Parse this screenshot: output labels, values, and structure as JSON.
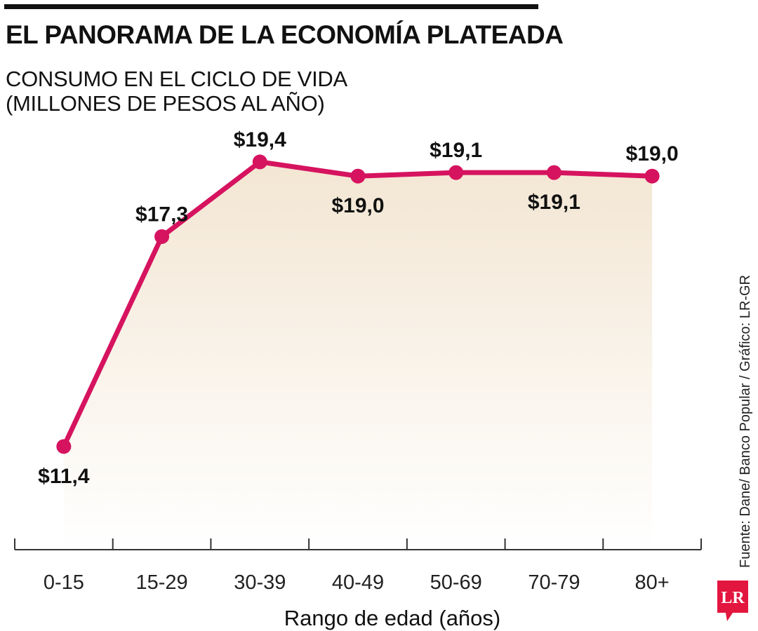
{
  "header": {
    "title": "EL PANORAMA DE LA ECONOMÍA PLATEADA",
    "subtitle_line1": "CONSUMO EN EL CICLO DE VIDA",
    "subtitle_line2": "(MILLONES DE PESOS AL AÑO)"
  },
  "source": "Fuente: Dane/ Banco Popular / Gráfico: LR-GR",
  "logo": {
    "text": "LR",
    "color": "#e3163f"
  },
  "chart_data": {
    "type": "line",
    "title": "CONSUMO EN EL CICLO DE VIDA (MILLONES DE PESOS AL AÑO)",
    "xlabel": "Rango de edad (años)",
    "ylabel": "",
    "categories": [
      "0-15",
      "15-29",
      "30-39",
      "40-49",
      "50-69",
      "70-79",
      "80+"
    ],
    "series": [
      {
        "name": "Consumo",
        "values": [
          11.4,
          17.3,
          19.4,
          19.0,
          19.1,
          19.1,
          19.0
        ],
        "labels": [
          "$11,4",
          "$17,3",
          "$19,4",
          "$19,0",
          "$19,1",
          "$19,1",
          "$19,0"
        ],
        "label_placement": [
          "below",
          "above",
          "above",
          "below",
          "above",
          "below",
          "above"
        ]
      }
    ],
    "ylim": [
      8.5,
      20.6
    ],
    "grid": false,
    "legend": "none",
    "area_fill": true,
    "colors": {
      "line": "#d6135f",
      "area_top": "#f3e6d3",
      "area_bottom": "#ffffff",
      "axis": "#333333"
    }
  }
}
